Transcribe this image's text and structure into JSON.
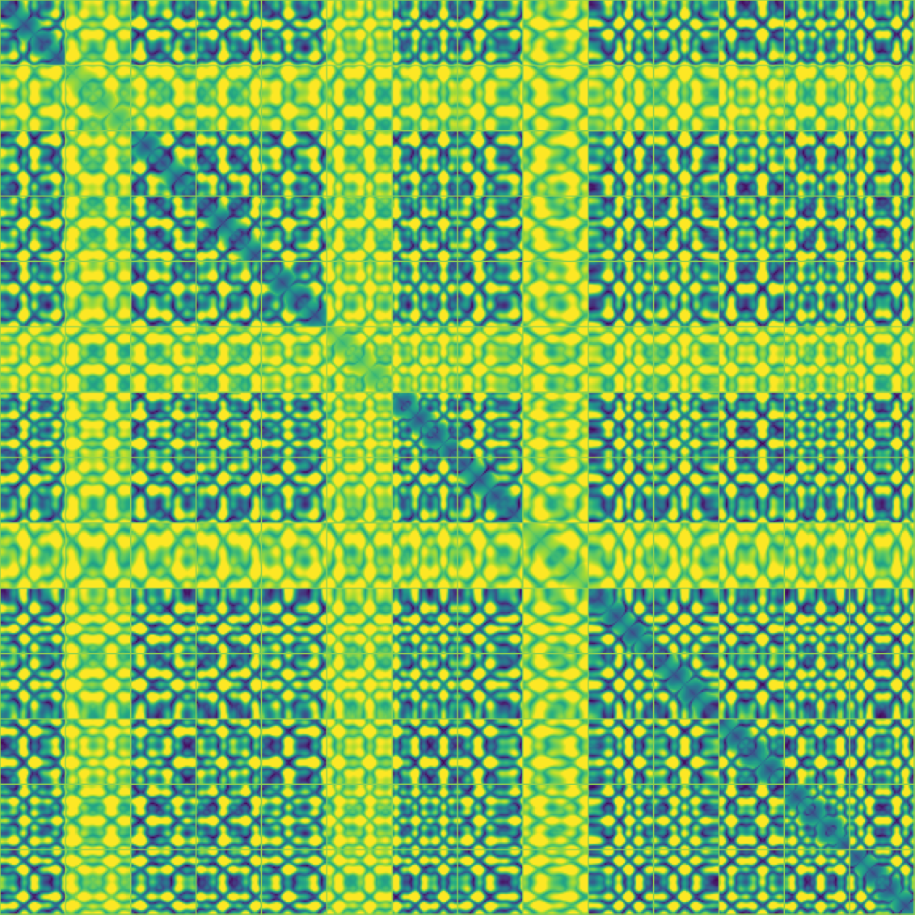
{
  "chart_data": {
    "type": "heatmap",
    "title": "",
    "xlabel": "",
    "ylabel": "",
    "colormap": "viridis",
    "color_range_low": "#440154",
    "color_range_high": "#fde725",
    "blocks": {
      "rows": 14,
      "cols": 14,
      "cells_per_block": 40
    },
    "highlight_rows": [
      1,
      5,
      8
    ],
    "highlight_cols": [
      1,
      5,
      8
    ],
    "grid": true,
    "grid_color": "#8fd14f"
  }
}
